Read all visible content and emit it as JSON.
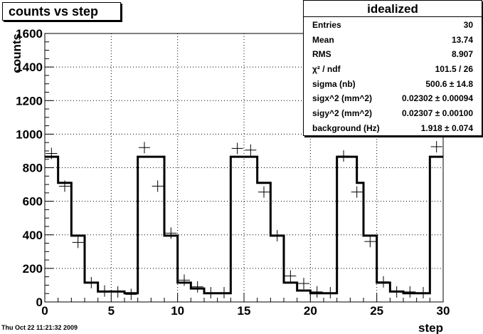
{
  "title": "counts vs step",
  "stats_box": {
    "title": "idealized",
    "rows": [
      {
        "label": "Entries",
        "value": "30"
      },
      {
        "label": "Mean",
        "value": "13.74"
      },
      {
        "label": "RMS",
        "value": "8.907"
      },
      {
        "label": "χ² / ndf",
        "value": "101.5 / 26"
      },
      {
        "label": "sigma (nb)",
        "value": "500.6 ± 14.8"
      },
      {
        "label": "sigx^2 (mm^2)",
        "value": "0.02302 ± 0.00094"
      },
      {
        "label": "sigy^2 (mm^2)",
        "value": "0.02307 ± 0.00100"
      },
      {
        "label": "background (Hz)",
        "value": "1.918 ± 0.074"
      }
    ]
  },
  "footer_date": "Thu Oct 22 11:21:32 2009",
  "chart_data": {
    "type": "line",
    "xlabel": "step",
    "ylabel": "counts",
    "xlim": [
      0,
      30
    ],
    "ylim": [
      0,
      1600
    ],
    "xticks": [
      0,
      5,
      10,
      15,
      20,
      25,
      30
    ],
    "yticks": [
      0,
      200,
      400,
      600,
      800,
      1000,
      1200,
      1400,
      1600
    ],
    "grid": true,
    "series": [
      {
        "kind": "step-histogram",
        "bin_edges": [
          0,
          0.5,
          1,
          2,
          3,
          3.5,
          4,
          5,
          6,
          7,
          7.5,
          8,
          8.5,
          9,
          10,
          11,
          12,
          14,
          14.5,
          15,
          16,
          17,
          18,
          19,
          20,
          22,
          22.5,
          23,
          23.5,
          24,
          25,
          26,
          27,
          29,
          29.5,
          30
        ],
        "values": [
          865,
          865,
          710,
          395,
          115,
          115,
          62,
          62,
          52,
          865,
          865,
          865,
          865,
          395,
          115,
          80,
          52,
          865,
          865,
          865,
          710,
          395,
          115,
          68,
          52,
          865,
          865,
          865,
          710,
          395,
          115,
          62,
          52,
          865,
          865
        ]
      },
      {
        "kind": "data-points",
        "x": [
          0.5,
          1.5,
          2.5,
          3.5,
          4.5,
          5.5,
          6.5,
          7.5,
          8.5,
          9.5,
          10.5,
          11.5,
          12.5,
          13.5,
          14.5,
          15.5,
          16.5,
          17.5,
          18.5,
          19.5,
          20.5,
          21.5,
          22.5,
          23.5,
          24.5,
          25.5,
          26.5,
          27.5,
          28.5,
          29.5
        ],
        "y": [
          885,
          690,
          355,
          115,
          65,
          60,
          45,
          920,
          690,
          410,
          130,
          90,
          55,
          55,
          915,
          905,
          655,
          395,
          155,
          110,
          60,
          55,
          870,
          655,
          360,
          120,
          60,
          60,
          55,
          925
        ]
      }
    ]
  }
}
